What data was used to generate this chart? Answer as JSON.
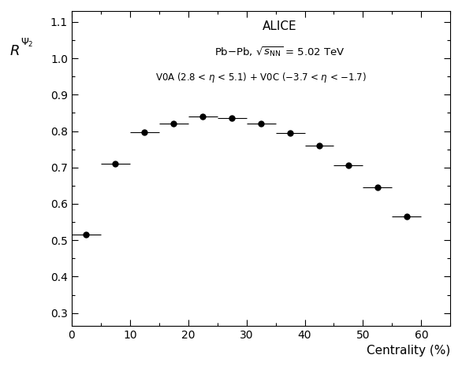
{
  "x": [
    2.5,
    7.5,
    12.5,
    17.5,
    22.5,
    27.5,
    32.5,
    37.5,
    42.5,
    47.5,
    52.5,
    57.5
  ],
  "y": [
    0.515,
    0.71,
    0.796,
    0.821,
    0.84,
    0.835,
    0.82,
    0.795,
    0.76,
    0.705,
    0.645,
    0.565
  ],
  "xerr": [
    2.5,
    2.5,
    2.5,
    2.5,
    2.5,
    2.5,
    2.5,
    2.5,
    2.5,
    2.5,
    2.5,
    2.5
  ],
  "yerr": [
    0.004,
    0.004,
    0.004,
    0.004,
    0.004,
    0.004,
    0.004,
    0.004,
    0.004,
    0.004,
    0.004,
    0.004
  ],
  "xlabel": "Centrality (%)",
  "xlim": [
    0,
    65
  ],
  "ylim": [
    0.265,
    1.13
  ],
  "xticks": [
    0,
    10,
    20,
    30,
    40,
    50,
    60
  ],
  "yticks": [
    0.3,
    0.4,
    0.5,
    0.6,
    0.7,
    0.8,
    0.9,
    1.0,
    1.1
  ],
  "annotation_line1": "ALICE",
  "annotation_line2": "Pb$-$Pb, $\\sqrt{s_{\\mathrm{NN}}}$ = 5.02 TeV",
  "annotation_line3": "V0A (2.8 < $\\eta$ < 5.1) + V0C ($-$3.7 < $\\eta$ < $-$1.7)",
  "point_color": "black",
  "marker_size": 5,
  "linewidth": 0.8,
  "ylabel_R": "$R$",
  "ylabel_sub": "$_{\\Psi_2}$"
}
